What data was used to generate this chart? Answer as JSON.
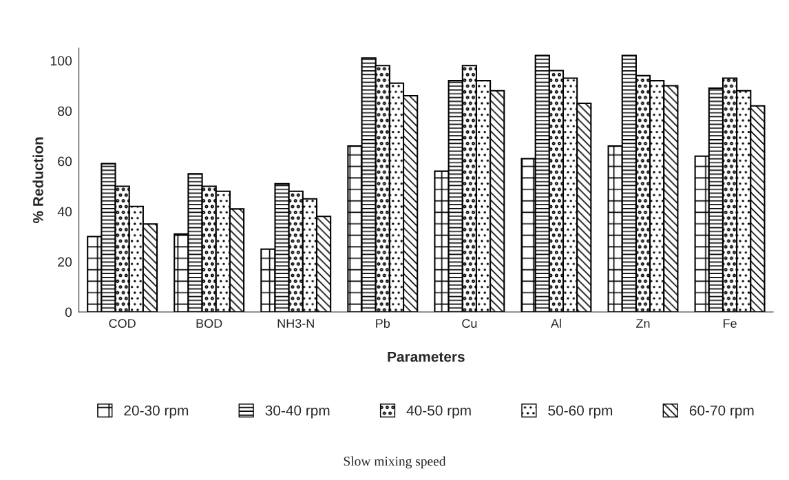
{
  "chart_data": {
    "type": "bar",
    "categories": [
      "COD",
      "BOD",
      "NH3-N",
      "Pb",
      "Cu",
      "Al",
      "Zn",
      "Fe"
    ],
    "xlabel": "Parameters",
    "ylabel": "% Reduction",
    "series": [
      {
        "name": "20-30 rpm",
        "color": "#000000",
        "values": [
          30,
          31,
          25,
          66,
          56,
          61,
          66,
          62
        ]
      },
      {
        "name": "30-40 rpm",
        "color": "#000000",
        "values": [
          59,
          55,
          51,
          101,
          92,
          102,
          102,
          89
        ]
      },
      {
        "name": "40-50 rpm",
        "color": "#000000",
        "values": [
          50,
          50,
          48,
          98,
          98,
          96,
          94,
          93
        ]
      },
      {
        "name": "50-60 rpm",
        "color": "#000000",
        "values": [
          42,
          48,
          45,
          91,
          92,
          93,
          92,
          88
        ]
      },
      {
        "name": "60-70 rpm",
        "color": "#000000",
        "values": [
          35,
          41,
          38,
          86,
          88,
          83,
          90,
          82
        ]
      }
    ],
    "ylim": [
      0,
      105
    ],
    "yticks": [
      0,
      20,
      40,
      60,
      80,
      100
    ],
    "grid": false,
    "legend": "bottom",
    "annotations": [
      "Slow mixing speed"
    ]
  }
}
